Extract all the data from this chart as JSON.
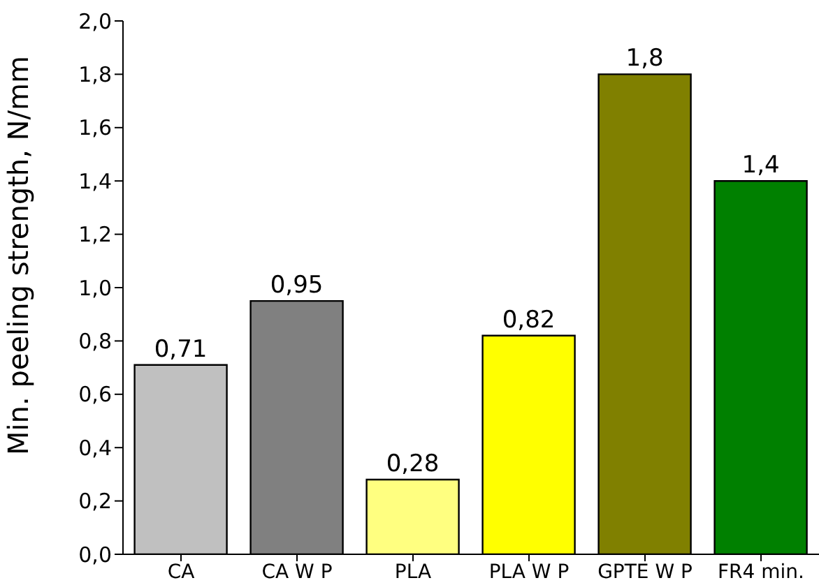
{
  "chart_data": {
    "type": "bar",
    "ylabel": "Min. peeling strength, N/mm",
    "categories": [
      "CA",
      "CA W P",
      "PLA",
      "PLA W P",
      "GPTE W P",
      "FR4 min."
    ],
    "values": [
      0.71,
      0.95,
      0.28,
      0.82,
      1.8,
      1.4
    ],
    "colors": [
      "#c0c0c0",
      "#808080",
      "#ffff80",
      "#ffff00",
      "#808000",
      "#008000"
    ],
    "value_labels": [
      "0,71",
      "0,95",
      "0,28",
      "0,82",
      "1,8",
      "1,4"
    ],
    "ylim": [
      0,
      2
    ],
    "yticks": [
      {
        "value": 0,
        "label": "0,0"
      },
      {
        "value": 0.2,
        "label": "0,2"
      },
      {
        "value": 0.4,
        "label": "0,4"
      },
      {
        "value": 0.6,
        "label": "0,6"
      },
      {
        "value": 0.8,
        "label": "0,8"
      },
      {
        "value": 1,
        "label": "1,0"
      },
      {
        "value": 1.2,
        "label": "1,2"
      },
      {
        "value": 1.4,
        "label": "1,4"
      },
      {
        "value": 1.6,
        "label": "1,6"
      },
      {
        "value": 1.8,
        "label": "1,8"
      },
      {
        "value": 2,
        "label": "2,0"
      }
    ],
    "grid": false,
    "legend": false
  }
}
